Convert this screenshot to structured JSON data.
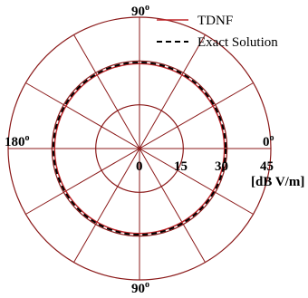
{
  "chart_data": {
    "type": "polar",
    "radial_ticks": [
      "0",
      "15",
      "30",
      "45"
    ],
    "radial_max": 45,
    "radial_unit": "[dB V/m]",
    "angle_labels": {
      "right": "0",
      "top": "90",
      "left": "180",
      "bottom": "90"
    },
    "degree_symbol": "o",
    "grid": true,
    "legend_position": "top-right",
    "series": [
      {
        "name": "TDNF",
        "style": "solid",
        "color": "#c0262a",
        "constant_value": 29.1
      },
      {
        "name": "Exact Solution",
        "style": "dashed",
        "color": "#000000",
        "constant_value": 29.5
      }
    ],
    "colors": {
      "grid": "#8b1a1a",
      "tdnf": "#c0262a",
      "exact": "#000000"
    }
  }
}
